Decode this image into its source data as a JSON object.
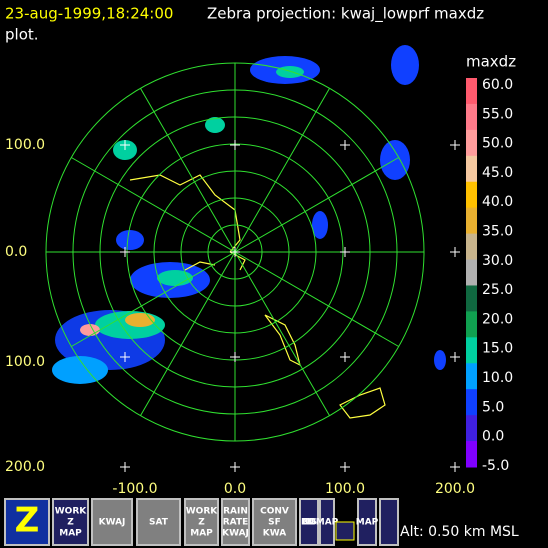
{
  "header": {
    "time": "23-aug-1999,18:24:00",
    "title": "Zebra projection: kwaj_lowprf maxdz",
    "title_line2": "plot."
  },
  "axes": {
    "y_labels": [
      "100.0",
      "0.0",
      "100.0",
      "200.0"
    ],
    "x_labels": [
      "-100.0",
      "0.0",
      "100.0",
      "200.0"
    ]
  },
  "colorbar": {
    "title": "maxdz",
    "labels": [
      "60.0",
      "55.0",
      "50.0",
      "45.0",
      "40.0",
      "35.0",
      "30.0",
      "25.0",
      "20.0",
      "15.0",
      "10.0",
      "5.0",
      "0.0",
      "-5.0"
    ],
    "colors": [
      "#ff5a6e",
      "#ff7a8a",
      "#ff9c9c",
      "#f5c8a0",
      "#ffc000",
      "#e8b030",
      "#c8b48c",
      "#b0b0b0",
      "#106840",
      "#10a050",
      "#00d0a0",
      "#00a0ff",
      "#1040ff",
      "#4020e0",
      "#8000ff"
    ]
  },
  "toolbar": {
    "buttons": [
      {
        "lines": [
          "Z"
        ]
      },
      {
        "lines": [
          "WORK",
          "Z",
          "MAP"
        ]
      },
      {
        "lines": [
          "KWAJ"
        ]
      },
      {
        "lines": [
          "SAT"
        ]
      },
      {
        "lines": [
          "WORK",
          "Z",
          "MAP"
        ]
      },
      {
        "lines": [
          "RAIN",
          "RATE",
          "KWAJ"
        ]
      },
      {
        "lines": [
          "CONV",
          "SF",
          "KWA"
        ]
      },
      {
        "lines": [
          "BOUNDS"
        ]
      },
      {
        "lines": [
          "MAP"
        ]
      },
      {
        "lines": [
          "MAP"
        ]
      }
    ]
  },
  "status": "Alt: 0.50 km MSL"
}
